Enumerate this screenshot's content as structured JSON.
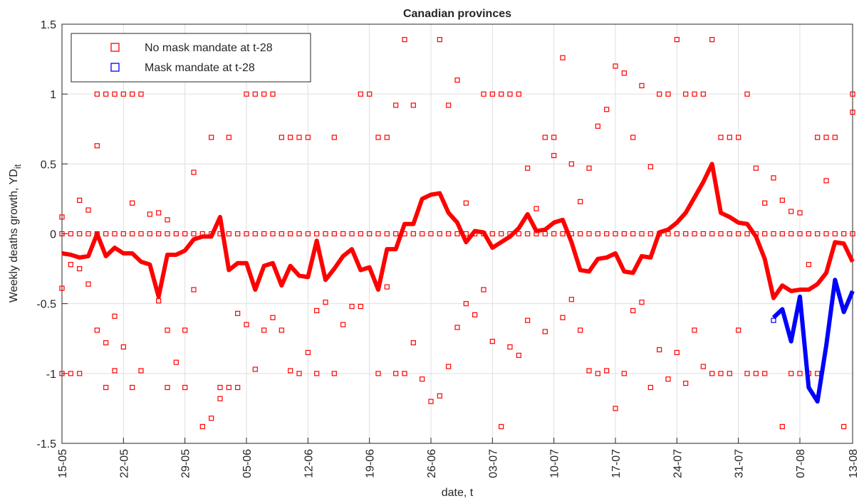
{
  "chart_data": {
    "type": "scatter-line",
    "title": "Canadian provinces",
    "xlabel": "date, t",
    "ylabel": "Weekly deaths growth, YD",
    "ylabel_sub": "it",
    "xlim": [
      0,
      90
    ],
    "ylim": [
      -1.5,
      1.5
    ],
    "xticks": [
      {
        "value": 0,
        "label": "15-05"
      },
      {
        "value": 7,
        "label": "22-05"
      },
      {
        "value": 14,
        "label": "29-05"
      },
      {
        "value": 21,
        "label": "05-06"
      },
      {
        "value": 28,
        "label": "12-06"
      },
      {
        "value": 35,
        "label": "19-06"
      },
      {
        "value": 42,
        "label": "26-06"
      },
      {
        "value": 49,
        "label": "03-07"
      },
      {
        "value": 56,
        "label": "10-07"
      },
      {
        "value": 63,
        "label": "17-07"
      },
      {
        "value": 70,
        "label": "24-07"
      },
      {
        "value": 77,
        "label": "31-07"
      },
      {
        "value": 84,
        "label": "07-08"
      },
      {
        "value": 90,
        "label": "13-08"
      }
    ],
    "yticks": [
      -1.5,
      -1,
      -0.5,
      0,
      0.5,
      1,
      1.5
    ],
    "grid": true,
    "legend": "upper left",
    "series": [
      {
        "name": "No mask mandate at t-28",
        "color": "#ff0000",
        "x": [
          0,
          1,
          2,
          3,
          4,
          5,
          6,
          7,
          8,
          9,
          10,
          11,
          12,
          13,
          14,
          15,
          16,
          17,
          18,
          19,
          20,
          21,
          22,
          23,
          24,
          25,
          26,
          27,
          28,
          29,
          30,
          31,
          32,
          33,
          34,
          35,
          36,
          37,
          38,
          39,
          40,
          41,
          42,
          43,
          44,
          45,
          46,
          47,
          48,
          49,
          50,
          51,
          52,
          53,
          54,
          55,
          56,
          57,
          58,
          59,
          60,
          61,
          62,
          63,
          64,
          65,
          66,
          67,
          68,
          69,
          70,
          71,
          72,
          73,
          74,
          75,
          76,
          77,
          78,
          79,
          80,
          81,
          82,
          83,
          84,
          85,
          86,
          87,
          88,
          89,
          90,
          0,
          0,
          0,
          1,
          1,
          2,
          2,
          2,
          3,
          3,
          4,
          4,
          4,
          5,
          5,
          5,
          6,
          6,
          6,
          7,
          7,
          8,
          8,
          8,
          9,
          9,
          10,
          11,
          11,
          12,
          12,
          12,
          13,
          14,
          14,
          15,
          15,
          16,
          16,
          17,
          17,
          17,
          18,
          18,
          19,
          19,
          20,
          20,
          21,
          21,
          22,
          22,
          23,
          23,
          24,
          24,
          25,
          25,
          26,
          26,
          27,
          27,
          28,
          28,
          29,
          29,
          30,
          31,
          31,
          32,
          33,
          34,
          34,
          35,
          36,
          36,
          37,
          37,
          38,
          38,
          39,
          39,
          40,
          40,
          41,
          42,
          43,
          43,
          44,
          44,
          45,
          45,
          46,
          46,
          47,
          48,
          48,
          49,
          49,
          50,
          50,
          51,
          51,
          52,
          52,
          53,
          53,
          54,
          55,
          55,
          56,
          56,
          57,
          57,
          58,
          58,
          59,
          59,
          60,
          60,
          61,
          61,
          62,
          62,
          63,
          63,
          64,
          64,
          65,
          65,
          66,
          66,
          67,
          67,
          68,
          68,
          69,
          69,
          70,
          70,
          71,
          71,
          72,
          72,
          73,
          73,
          74,
          74,
          75,
          75,
          76,
          76,
          77,
          77,
          78,
          78,
          79,
          79,
          80,
          80,
          81,
          82,
          82,
          83,
          83,
          84,
          84,
          85,
          85,
          86,
          86,
          87,
          87,
          88,
          89,
          90,
          90
        ],
        "values": [
          0,
          0,
          0,
          0,
          0,
          0,
          0,
          0,
          0,
          0,
          0,
          0,
          0,
          0,
          0,
          0,
          0,
          0,
          0,
          0,
          0,
          0,
          0,
          0,
          0,
          0,
          0,
          0,
          0,
          0,
          0,
          0,
          0,
          0,
          0,
          0,
          0,
          0,
          0,
          0,
          0,
          0,
          0,
          0,
          0,
          0,
          0,
          0,
          0,
          0,
          0,
          0,
          0,
          0,
          0,
          0,
          0,
          0,
          0,
          0,
          0,
          0,
          0,
          0,
          0,
          0,
          0,
          0,
          0,
          0,
          0,
          0,
          0,
          0,
          0,
          0,
          0,
          0,
          0,
          0,
          0,
          0,
          0,
          0,
          0,
          0,
          0,
          0,
          0,
          0,
          0,
          0.12,
          -0.39,
          -1,
          -0.22,
          -1,
          0.24,
          -0.25,
          -1,
          0.17,
          -0.36,
          1,
          0.63,
          -0.69,
          1,
          -0.78,
          -1.1,
          1,
          -0.59,
          -0.98,
          1,
          -0.81,
          1,
          -1.1,
          0.22,
          1,
          -0.98,
          0.14,
          0.15,
          -0.48,
          0.1,
          -0.69,
          -1.1,
          -0.92,
          -0.69,
          -1.1,
          0.44,
          -0.4,
          1.4,
          -1.38,
          1.4,
          0.69,
          -1.32,
          -1.1,
          -1.18,
          0.69,
          -1.1,
          -0.57,
          -1.1,
          1,
          -0.65,
          1,
          -0.97,
          1,
          -0.69,
          1,
          -0.6,
          0.69,
          -0.69,
          0.69,
          -0.98,
          0.69,
          -1,
          0.69,
          -0.85,
          -0.55,
          -1,
          -0.49,
          0.69,
          -1,
          -0.65,
          -0.52,
          1,
          -0.52,
          1,
          0.69,
          -1,
          0.69,
          -0.38,
          0.92,
          -1,
          1.39,
          -1,
          0.92,
          -0.78,
          -1.04,
          -1.2,
          1.39,
          -1.16,
          0.92,
          -0.95,
          1.1,
          -0.67,
          0.22,
          -0.5,
          -0.58,
          1,
          -0.4,
          1,
          -0.77,
          1,
          -1.38,
          1,
          -0.81,
          1,
          -0.87,
          0.47,
          -0.62,
          0.18,
          0.69,
          -0.7,
          0.69,
          0.56,
          1.26,
          -0.6,
          0.5,
          -0.47,
          0.23,
          -0.69,
          0.47,
          -0.98,
          0.77,
          -1,
          0.89,
          -0.98,
          1.2,
          -1.25,
          1.15,
          -1,
          0.69,
          -0.55,
          1.06,
          -0.49,
          0.48,
          -1.1,
          1,
          -0.83,
          1,
          -1.04,
          1.39,
          -0.85,
          1,
          -1.07,
          1,
          -0.69,
          1,
          -0.95,
          1.39,
          -1,
          0.69,
          -1,
          0.69,
          -1,
          0.69,
          -0.69,
          1,
          -1,
          0.47,
          -1,
          0.22,
          -1,
          0.4,
          0.24,
          -1.38,
          0.16,
          -1,
          0.15,
          -1,
          -0.22,
          -1,
          0.69,
          -1,
          0.69,
          0.38,
          0.69,
          -1.38,
          1,
          0.87
        ]
      },
      {
        "name": "Mask mandate at t-28",
        "color": "#0000ff",
        "x": [
          81
        ],
        "values": [
          -0.62
        ]
      }
    ],
    "lines": [
      {
        "color": "#ff0000",
        "x": [
          0,
          1,
          2,
          3,
          4,
          5,
          6,
          7,
          8,
          9,
          10,
          11,
          12,
          13,
          14,
          15,
          16,
          17,
          18,
          19,
          20,
          21,
          22,
          23,
          24,
          25,
          26,
          27,
          28,
          29,
          30,
          31,
          32,
          33,
          34,
          35,
          36,
          37,
          38,
          39,
          40,
          41,
          42,
          43,
          44,
          45,
          46,
          47,
          48,
          49,
          50,
          51,
          52,
          53,
          54,
          55,
          56,
          57,
          58,
          59,
          60,
          61,
          62,
          63,
          64,
          65,
          66,
          67,
          68,
          69,
          70,
          71,
          72,
          73,
          74,
          75,
          76,
          77,
          78,
          79,
          80,
          81,
          82,
          83,
          84,
          85,
          86,
          87,
          88,
          89,
          90
        ],
        "values": [
          -0.14,
          -0.15,
          -0.17,
          -0.16,
          0,
          -0.16,
          -0.1,
          -0.14,
          -0.14,
          -0.2,
          -0.22,
          -0.45,
          -0.15,
          -0.15,
          -0.12,
          -0.04,
          -0.02,
          -0.02,
          0.12,
          -0.26,
          -0.21,
          -0.21,
          -0.4,
          -0.23,
          -0.21,
          -0.37,
          -0.23,
          -0.3,
          -0.31,
          -0.05,
          -0.33,
          -0.25,
          -0.16,
          -0.11,
          -0.26,
          -0.24,
          -0.4,
          -0.11,
          -0.11,
          0.07,
          0.07,
          0.25,
          0.28,
          0.29,
          0.15,
          0.08,
          -0.06,
          0.02,
          0.01,
          -0.1,
          -0.06,
          -0.02,
          0.04,
          0.14,
          0.02,
          0.03,
          0.08,
          0.1,
          -0.06,
          -0.26,
          -0.27,
          -0.18,
          -0.17,
          -0.14,
          -0.27,
          -0.28,
          -0.16,
          -0.17,
          0.01,
          0.03,
          0.08,
          0.15,
          0.26,
          0.37,
          0.5,
          0.15,
          0.12,
          0.08,
          0.07,
          -0.02,
          -0.18,
          -0.46,
          -0.37,
          -0.41,
          -0.4,
          -0.4,
          -0.36,
          -0.28,
          -0.06,
          -0.07,
          -0.2
        ]
      },
      {
        "color": "#0000ff",
        "x": [
          81,
          82,
          83,
          84,
          85,
          86,
          87,
          88,
          89,
          90
        ],
        "values": [
          -0.6,
          -0.54,
          -0.77,
          -0.45,
          -1.1,
          -1.2,
          -0.8,
          -0.33,
          -0.56,
          -0.41
        ]
      }
    ]
  }
}
